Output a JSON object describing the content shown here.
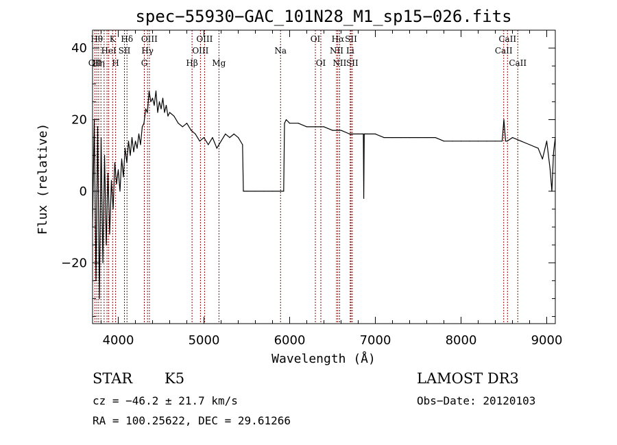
{
  "chart_data": {
    "type": "line",
    "title": "spec−55930−GAC_101N28_M1_sp15−026.fits",
    "xlabel": "Wavelength (Å)",
    "ylabel": "Flux (relative)",
    "xlim": [
      3700,
      9100
    ],
    "ylim": [
      -37,
      45
    ],
    "x_ticks": [
      {
        "value": 4000,
        "label": "4000"
      },
      {
        "value": 5000,
        "label": "5000"
      },
      {
        "value": 6000,
        "label": "6000"
      },
      {
        "value": 7000,
        "label": "7000"
      },
      {
        "value": 8000,
        "label": "8000"
      },
      {
        "value": 9000,
        "label": "9000"
      }
    ],
    "y_ticks": [
      {
        "value": -20,
        "label": "−20"
      },
      {
        "value": 0,
        "label": "0"
      },
      {
        "value": 20,
        "label": "20"
      },
      {
        "value": 40,
        "label": "40"
      }
    ],
    "series": [
      {
        "name": "flux",
        "x": [
          3700,
          3720,
          3740,
          3760,
          3780,
          3800,
          3820,
          3840,
          3860,
          3880,
          3900,
          3920,
          3940,
          3960,
          3980,
          4000,
          4020,
          4040,
          4060,
          4080,
          4100,
          4120,
          4140,
          4160,
          4180,
          4200,
          4220,
          4240,
          4260,
          4280,
          4300,
          4320,
          4340,
          4360,
          4380,
          4400,
          4420,
          4440,
          4460,
          4480,
          4500,
          4520,
          4540,
          4560,
          4580,
          4600,
          4650,
          4700,
          4750,
          4800,
          4850,
          4900,
          4950,
          5000,
          5050,
          5100,
          5150,
          5200,
          5250,
          5300,
          5350,
          5400,
          5450,
          5460,
          5470,
          5500,
          5600,
          5700,
          5800,
          5900,
          5930,
          5940,
          5960,
          6000,
          6100,
          6200,
          6300,
          6400,
          6500,
          6600,
          6700,
          6800,
          6860,
          6865,
          6870,
          6880,
          6900,
          7000,
          7100,
          7200,
          7300,
          7400,
          7500,
          7600,
          7700,
          7800,
          7900,
          8000,
          8100,
          8200,
          8300,
          8400,
          8480,
          8500,
          8520,
          8540,
          8600,
          8700,
          8800,
          8900,
          8950,
          9000,
          9040,
          9060,
          9080,
          9100
        ],
        "y": [
          -10,
          20,
          -25,
          18,
          -30,
          15,
          -20,
          10,
          -15,
          5,
          -12,
          3,
          -5,
          8,
          2,
          6,
          0,
          9,
          4,
          12,
          8,
          14,
          10,
          15,
          11,
          14,
          12,
          16,
          13,
          18,
          19,
          23,
          22,
          28,
          25,
          26,
          24,
          28,
          22,
          25,
          23,
          26,
          22,
          24,
          21,
          22,
          21,
          19,
          18,
          19,
          17,
          16,
          14,
          15,
          13,
          15,
          12,
          14,
          16,
          15,
          16,
          15,
          13,
          0,
          0,
          0,
          0,
          0,
          0,
          0,
          0,
          19,
          20,
          19,
          19,
          18,
          18,
          18,
          17,
          17,
          16,
          16,
          16,
          -2,
          16,
          16,
          16,
          16,
          15,
          15,
          15,
          15,
          15,
          15,
          15,
          14,
          14,
          14,
          14,
          14,
          14,
          14,
          14,
          20,
          14,
          14,
          15,
          14,
          13,
          12,
          9,
          14,
          6,
          0,
          11,
          15
        ]
      }
    ],
    "emission_lines": [
      {
        "wavelength": 3727,
        "label": "OII",
        "row": 2
      },
      {
        "wavelength": 3750,
        "label": "Hθ",
        "row": 0
      },
      {
        "wavelength": 3771,
        "label": "Hη",
        "row": 2
      },
      {
        "wavelength": 3798,
        "label": "",
        "row": -1
      },
      {
        "wavelength": 3835,
        "label": "",
        "row": -1
      },
      {
        "wavelength": 3869,
        "label": "",
        "row": -1
      },
      {
        "wavelength": 3889,
        "label": "HeI",
        "row": 1
      },
      {
        "wavelength": 3934,
        "label": "K",
        "row": 0
      },
      {
        "wavelength": 3969,
        "label": "H",
        "row": 2
      },
      {
        "wavelength": 4072,
        "label": "SII",
        "row": 1
      },
      {
        "wavelength": 4102,
        "label": "Hδ",
        "row": 0
      },
      {
        "wavelength": 4304,
        "label": "G",
        "row": 2
      },
      {
        "wavelength": 4341,
        "label": "Hγ",
        "row": 1
      },
      {
        "wavelength": 4363,
        "label": "OIII",
        "row": 0
      },
      {
        "wavelength": 4861,
        "label": "Hβ",
        "row": 2
      },
      {
        "wavelength": 4959,
        "label": "OIII",
        "row": 1
      },
      {
        "wavelength": 5007,
        "label": "OIII",
        "row": 0
      },
      {
        "wavelength": 5175,
        "label": "Mg",
        "row": 2
      },
      {
        "wavelength": 5894,
        "label": "Na",
        "row": 1
      },
      {
        "wavelength": 6300,
        "label": "OI",
        "row": 0
      },
      {
        "wavelength": 6364,
        "label": "OI",
        "row": 2
      },
      {
        "wavelength": 6548,
        "label": "NII",
        "row": 1
      },
      {
        "wavelength": 6563,
        "label": "Hα",
        "row": 0
      },
      {
        "wavelength": 6583,
        "label": "NII",
        "row": 2
      },
      {
        "wavelength": 6707,
        "label": "Li",
        "row": 1
      },
      {
        "wavelength": 6716,
        "label": "SII",
        "row": 0
      },
      {
        "wavelength": 6731,
        "label": "SII",
        "row": 2
      },
      {
        "wavelength": 8498,
        "label": "CaII",
        "row": 1
      },
      {
        "wavelength": 8542,
        "label": "CaII",
        "row": 0
      },
      {
        "wavelength": 8662,
        "label": "CaII",
        "row": 2
      }
    ],
    "line_color": "#8b0000",
    "spectrum_color": "#000000"
  },
  "info": {
    "object_class": "STAR",
    "subclass": "K5",
    "survey": "LAMOST DR3",
    "redshift": "cz = −46.2 ± 21.7 km/s",
    "obs_date": "Obs−Date: 20120103",
    "coords": "RA = 100.25622, DEC =  29.61266"
  }
}
